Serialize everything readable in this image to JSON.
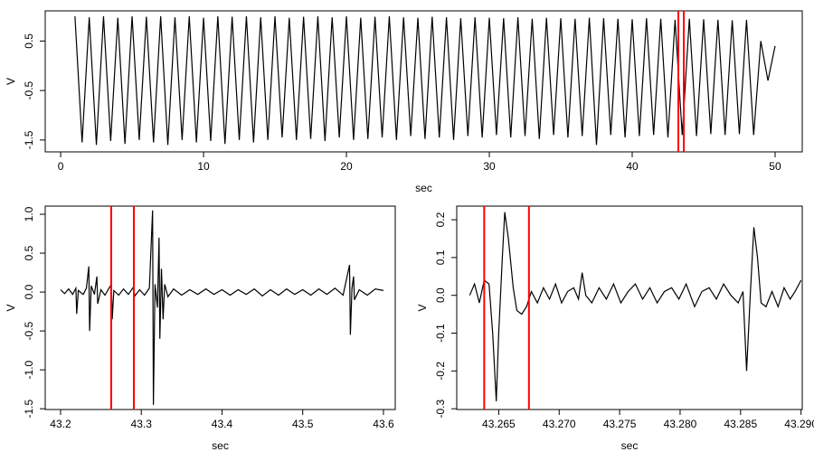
{
  "chart_data": [
    {
      "type": "line",
      "xlabel": "sec",
      "ylabel": "V",
      "color": "#000000",
      "x": [
        1,
        1.5,
        2,
        2.5,
        3,
        3.5,
        4,
        4.5,
        5,
        5.5,
        6,
        6.5,
        7,
        7.5,
        8,
        8.5,
        9,
        9.5,
        10,
        10.5,
        11,
        11.5,
        12,
        12.5,
        13,
        13.5,
        14,
        14.5,
        15,
        15.5,
        16,
        16.5,
        17,
        17.5,
        18,
        18.5,
        19,
        19.5,
        20,
        20.5,
        21,
        21.5,
        22,
        22.5,
        23,
        23.5,
        24,
        24.5,
        25,
        25.5,
        26,
        26.5,
        27,
        27.5,
        28,
        28.5,
        29,
        29.5,
        30,
        30.5,
        31,
        31.5,
        32,
        32.5,
        33,
        33.5,
        34,
        34.5,
        35,
        35.5,
        36,
        36.5,
        37,
        37.5,
        38,
        38.5,
        39,
        39.5,
        40,
        40.5,
        41,
        41.5,
        42,
        42.5,
        43,
        43.5,
        44,
        44.5,
        45,
        45.5,
        46,
        46.5,
        47,
        47.5,
        48,
        48.5,
        49,
        49.5,
        50
      ],
      "values": [
        1.0,
        -1.55,
        0.98,
        -1.6,
        1.0,
        -1.52,
        0.97,
        -1.58,
        1.0,
        -1.5,
        0.99,
        -1.55,
        1.0,
        -1.6,
        0.98,
        -1.5,
        1.0,
        -1.55,
        0.97,
        -1.52,
        1.0,
        -1.58,
        0.99,
        -1.5,
        1.0,
        -1.55,
        0.98,
        -1.5,
        1.0,
        -1.45,
        0.97,
        -1.5,
        0.99,
        -1.48,
        1.0,
        -1.52,
        0.98,
        -1.45,
        1.0,
        -1.5,
        0.97,
        -1.48,
        0.99,
        -1.45,
        1.0,
        -1.5,
        0.98,
        -1.42,
        0.97,
        -1.48,
        0.99,
        -1.45,
        0.98,
        -1.5,
        0.96,
        -1.42,
        0.98,
        -1.45,
        0.97,
        -1.4,
        0.96,
        -1.45,
        0.98,
        -1.42,
        0.95,
        -1.48,
        0.97,
        -1.4,
        0.96,
        -1.45,
        0.95,
        -1.42,
        0.97,
        -1.6,
        0.96,
        -1.4,
        0.95,
        -1.45,
        0.94,
        -1.42,
        0.96,
        -1.4,
        0.95,
        -1.45,
        0.93,
        -1.4,
        0.95,
        -1.42,
        0.94,
        -1.38,
        0.93,
        -1.4,
        0.92,
        -1.38,
        0.93,
        -1.4,
        0.5,
        -0.3,
        0.4
      ],
      "xlim": [
        -1.08,
        51.9
      ],
      "ylim": [
        -1.74,
        1.11
      ],
      "xticks": [
        0,
        10,
        20,
        30,
        40,
        50
      ],
      "yticks": [
        -1.5,
        -0.5,
        0.5
      ],
      "markers": {
        "x": [
          43.23,
          43.61
        ],
        "color": "#ff0000"
      }
    },
    {
      "type": "line",
      "xlabel": "sec",
      "ylabel": "V",
      "color": "#000000",
      "x": [
        43.2,
        43.205,
        43.21,
        43.215,
        43.219,
        43.22,
        43.222,
        43.228,
        43.232,
        43.235,
        43.236,
        43.238,
        43.242,
        43.245,
        43.246,
        43.25,
        43.255,
        43.26,
        43.263,
        43.264,
        43.266,
        43.272,
        43.278,
        43.284,
        43.29,
        43.292,
        43.298,
        43.304,
        43.31,
        43.314,
        43.315,
        43.317,
        43.32,
        43.322,
        43.323,
        43.325,
        43.327,
        43.329,
        43.333,
        43.34,
        43.35,
        43.36,
        43.37,
        43.38,
        43.39,
        43.4,
        43.41,
        43.42,
        43.43,
        43.44,
        43.45,
        43.46,
        43.47,
        43.48,
        43.49,
        43.5,
        43.51,
        43.52,
        43.53,
        43.54,
        43.55,
        43.558,
        43.559,
        43.561,
        43.563,
        43.564,
        43.57,
        43.58,
        43.59,
        43.6
      ],
      "values": [
        0.03,
        -0.02,
        0.04,
        -0.03,
        0.05,
        -0.28,
        0.02,
        -0.03,
        0.05,
        0.33,
        -0.5,
        0.08,
        -0.03,
        0.2,
        -0.15,
        0.03,
        -0.04,
        0.05,
        0.1,
        -0.35,
        0.02,
        -0.04,
        0.04,
        -0.03,
        0.06,
        -0.05,
        0.03,
        -0.04,
        0.05,
        1.05,
        -1.45,
        0.1,
        -0.2,
        0.7,
        -0.6,
        0.3,
        -0.35,
        0.1,
        -0.06,
        0.04,
        -0.04,
        0.03,
        -0.03,
        0.04,
        -0.03,
        0.03,
        -0.04,
        0.03,
        -0.03,
        0.04,
        -0.05,
        0.03,
        -0.04,
        0.04,
        -0.03,
        0.03,
        -0.04,
        0.04,
        -0.03,
        0.05,
        -0.04,
        0.35,
        -0.55,
        0.05,
        0.2,
        -0.1,
        0.03,
        -0.04,
        0.04,
        0.02
      ],
      "xlim": [
        43.181,
        43.6146
      ],
      "ylim": [
        -1.51,
        1.105
      ],
      "xticks": [
        43.2,
        43.3,
        43.4,
        43.5,
        43.6
      ],
      "yticks": [
        -1.5,
        {
          "value": -1,
          "label": "-1.0"
        },
        -0.5,
        {
          "value": 0,
          "label": "0.0"
        },
        0.5,
        {
          "value": 1,
          "label": "1.0"
        }
      ],
      "markers": {
        "x": [
          43.2627,
          43.2908
        ],
        "color": "#ff0000"
      }
    },
    {
      "type": "line",
      "xlabel": "sec",
      "ylabel": "V",
      "color": "#000000",
      "x": [
        43.2626,
        43.263,
        43.2634,
        43.2638,
        43.2642,
        43.2645,
        43.2648,
        43.265,
        43.2653,
        43.2655,
        43.2658,
        43.2662,
        43.2665,
        43.2669,
        43.2673,
        43.2677,
        43.2682,
        43.2687,
        43.2692,
        43.2697,
        43.2702,
        43.2707,
        43.2712,
        43.2716,
        43.2719,
        43.2722,
        43.2727,
        43.2733,
        43.2739,
        43.2745,
        43.2751,
        43.2757,
        43.2763,
        43.2769,
        43.2775,
        43.2781,
        43.2787,
        43.2793,
        43.2799,
        43.2805,
        43.2812,
        43.2818,
        43.2824,
        43.283,
        43.2836,
        43.2842,
        43.2848,
        43.2852,
        43.2855,
        43.2858,
        43.2861,
        43.2864,
        43.2867,
        43.2871,
        43.2876,
        43.2881,
        43.2886,
        43.2891,
        43.2895,
        43.29
      ],
      "values": [
        0.0,
        0.03,
        -0.02,
        0.04,
        0.03,
        -0.1,
        -0.28,
        -0.1,
        0.1,
        0.22,
        0.15,
        0.02,
        -0.04,
        -0.05,
        -0.03,
        0.01,
        -0.02,
        0.02,
        -0.01,
        0.03,
        -0.02,
        0.01,
        0.02,
        -0.01,
        0.06,
        0.0,
        -0.02,
        0.02,
        -0.01,
        0.03,
        -0.02,
        0.01,
        0.03,
        -0.01,
        0.02,
        -0.02,
        0.01,
        0.02,
        -0.01,
        0.03,
        -0.03,
        0.01,
        0.02,
        -0.01,
        0.03,
        0.0,
        -0.02,
        0.01,
        -0.2,
        0.0,
        0.18,
        0.1,
        -0.02,
        -0.03,
        0.01,
        -0.03,
        0.02,
        -0.01,
        0.01,
        0.04
      ],
      "xlim": [
        43.26153,
        43.2901
      ],
      "ylim": [
        -0.302,
        0.236
      ],
      "xticks": [
        43.265,
        {
          "value": 43.27,
          "label": "43.270"
        },
        43.275,
        {
          "value": 43.28,
          "label": "43.280"
        },
        43.285,
        {
          "value": 43.29,
          "label": "43.290"
        }
      ],
      "yticks": [
        -0.3,
        -0.2,
        -0.1,
        {
          "value": 0,
          "label": "0.0"
        },
        0.1,
        0.2
      ],
      "markers": {
        "x": [
          43.2638,
          43.2675
        ],
        "color": "#ff0000"
      }
    }
  ]
}
